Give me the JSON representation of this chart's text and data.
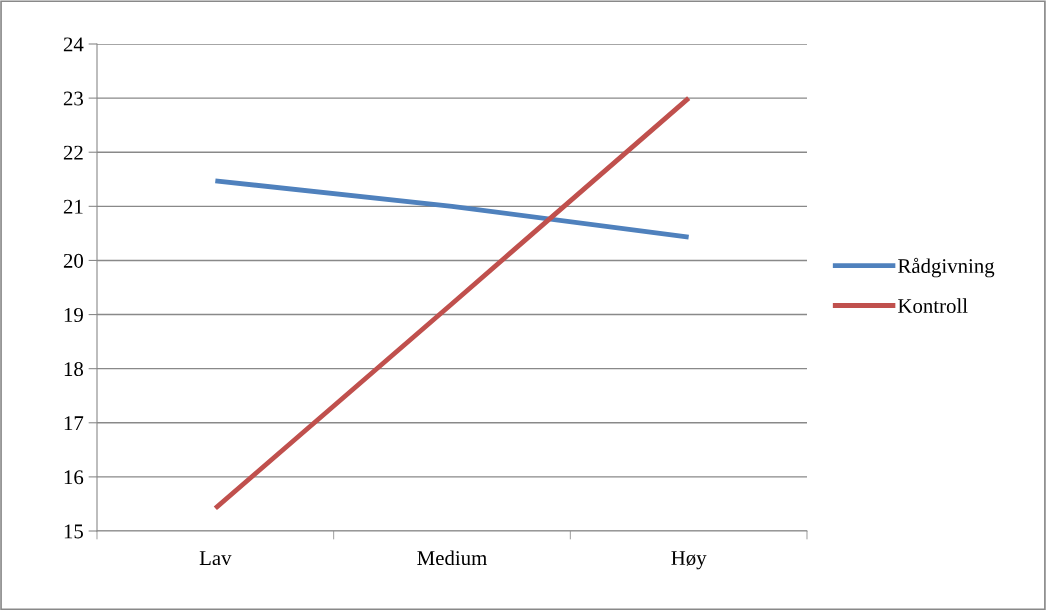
{
  "chart_data": {
    "type": "line",
    "categories": [
      "Lav",
      "Medium",
      "Høy"
    ],
    "series": [
      {
        "name": "Rådgivning",
        "color": "#4f81bd",
        "values": [
          21.47,
          21.0,
          20.43
        ]
      },
      {
        "name": "Kontroll",
        "color": "#c0504d",
        "values": [
          15.42,
          19.2,
          23.0
        ]
      }
    ],
    "ylim": [
      15,
      24
    ],
    "yticks": [
      15,
      16,
      17,
      18,
      19,
      20,
      21,
      22,
      23,
      24
    ],
    "grid": "y",
    "legend": "right",
    "marker": "none",
    "line_style": "solid"
  }
}
